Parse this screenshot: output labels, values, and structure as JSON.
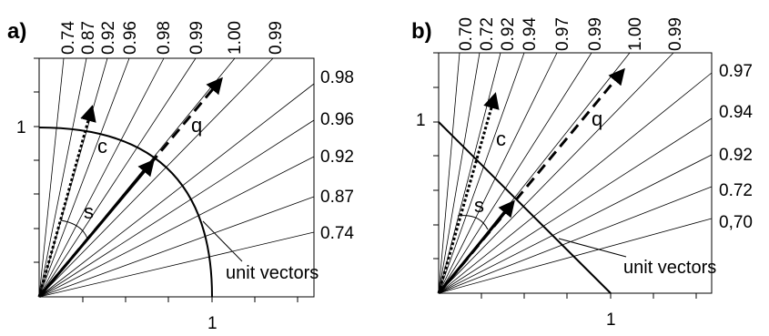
{
  "panel_a": {
    "label": "a)",
    "top_labels": [
      "0.74",
      "0.87",
      "0.92",
      "0.96",
      "0.98",
      "0.99",
      "1.00",
      "0.99"
    ],
    "right_labels": [
      "0.98",
      "0.96",
      "0.92",
      "0.87",
      "0.74"
    ],
    "axis_one_y": "1",
    "axis_one_x": "1",
    "vector_c": "c",
    "vector_q": "q",
    "angle_s": "s",
    "unit_vectors_label": "unit vectors",
    "boundary": "arc"
  },
  "panel_b": {
    "label": "b)",
    "top_labels": [
      "0.70",
      "0.72",
      "0.92",
      "0.94",
      "0.97",
      "0.99",
      "1.00",
      "0.99"
    ],
    "right_labels": [
      "0.97",
      "0.94",
      "0.92",
      "0.72",
      "0,70"
    ],
    "axis_one_y": "1",
    "axis_one_x": "1",
    "vector_c": "c",
    "vector_q": "q",
    "angle_s": "s",
    "unit_vectors_label": "unit vectors",
    "boundary": "line"
  }
}
